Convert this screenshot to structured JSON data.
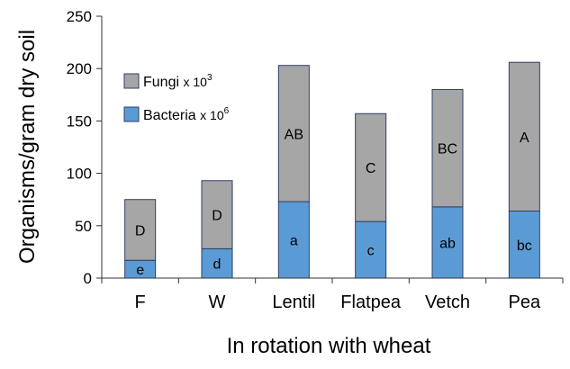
{
  "chart_data": {
    "type": "bar",
    "stacked": true,
    "categories": [
      "F",
      "W",
      "Lentil",
      "Flatpea",
      "Vetch",
      "Pea"
    ],
    "series": [
      {
        "name": "Bacteria",
        "name_multiplier": "x 10",
        "name_exponent": "6",
        "color": "#5b9bd5",
        "values": [
          17,
          28,
          73,
          54,
          68,
          64
        ],
        "letters": [
          "e",
          "d",
          "a",
          "c",
          "ab",
          "bc"
        ]
      },
      {
        "name": "Fungi",
        "name_multiplier": "x 10",
        "name_exponent": "3",
        "color": "#a6a6a6",
        "values": [
          58,
          65,
          130,
          103,
          112,
          142
        ],
        "letters": [
          "D",
          "D",
          "AB",
          "C",
          "BC",
          "A"
        ]
      }
    ],
    "title": "",
    "xlabel": "In rotation with wheat",
    "ylabel": "Organisms/gram dry soil",
    "ylim": [
      0,
      250
    ],
    "yticks": [
      0,
      50,
      100,
      150,
      200,
      250
    ],
    "grid": false,
    "legend_position": "top-left"
  }
}
